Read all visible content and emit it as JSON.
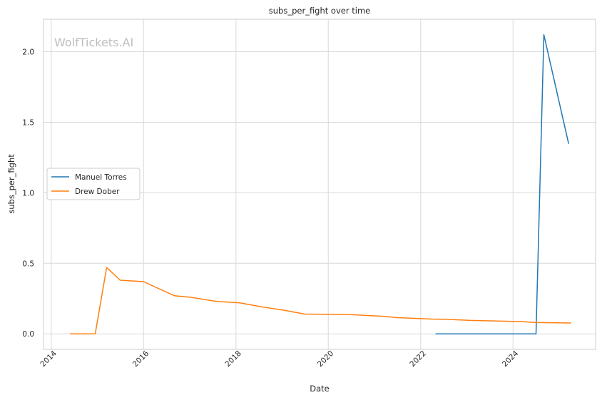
{
  "chart_data": {
    "type": "line",
    "title": "subs_per_fight over time",
    "xlabel": "Date",
    "ylabel": "subs_per_fight",
    "watermark": "WolfTickets.AI",
    "x_ticks": [
      "2014",
      "2016",
      "2018",
      "2020",
      "2022",
      "2024"
    ],
    "y_ticks": [
      "0.0",
      "0.5",
      "1.0",
      "1.5",
      "2.0"
    ],
    "xlim": [
      "2013-11-01",
      "2025-10-15"
    ],
    "ylim": [
      -0.11,
      2.23
    ],
    "grid": true,
    "legend_position": "center-left",
    "series": [
      {
        "name": "Manuel Torres",
        "color": "#1f77b4",
        "points": [
          [
            "2022-05-01",
            0.0
          ],
          [
            "2024-07-01",
            0.0
          ],
          [
            "2024-09-01",
            2.12
          ],
          [
            "2025-03-15",
            1.35
          ]
        ]
      },
      {
        "name": "Drew Dober",
        "color": "#ff7f0e",
        "points": [
          [
            "2014-05-31",
            0.0
          ],
          [
            "2014-12-15",
            0.0
          ],
          [
            "2015-03-15",
            0.47
          ],
          [
            "2015-07-01",
            0.38
          ],
          [
            "2016-01-01",
            0.37
          ],
          [
            "2016-09-01",
            0.27
          ],
          [
            "2017-01-01",
            0.26
          ],
          [
            "2017-08-01",
            0.23
          ],
          [
            "2018-02-01",
            0.22
          ],
          [
            "2018-08-01",
            0.19
          ],
          [
            "2019-01-01",
            0.17
          ],
          [
            "2019-07-01",
            0.14
          ],
          [
            "2020-06-01",
            0.137
          ],
          [
            "2021-03-01",
            0.125
          ],
          [
            "2021-07-01",
            0.115
          ],
          [
            "2022-04-01",
            0.105
          ],
          [
            "2022-08-01",
            0.103
          ],
          [
            "2023-02-01",
            0.095
          ],
          [
            "2023-10-01",
            0.09
          ],
          [
            "2024-03-01",
            0.087
          ],
          [
            "2024-07-01",
            0.08
          ],
          [
            "2025-04-01",
            0.077
          ]
        ]
      }
    ]
  }
}
